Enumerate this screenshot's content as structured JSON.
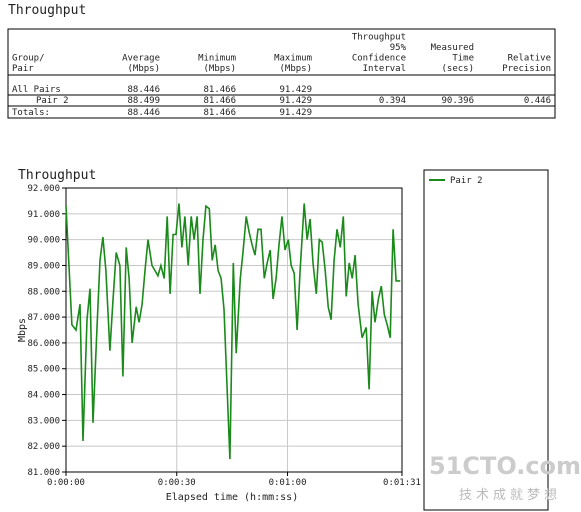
{
  "header": {
    "title": "Throughput"
  },
  "table": {
    "columns": [
      [
        "Group/",
        "Pair"
      ],
      [
        "Average",
        "(Mbps)"
      ],
      [
        "Minimum",
        "(Mbps)"
      ],
      [
        "Maximum",
        "(Mbps)"
      ],
      [
        "Throughput",
        "95%",
        "Confidence",
        "Interval"
      ],
      [
        "Measured",
        "Time",
        "(secs)"
      ],
      [
        "Relative",
        "Precision"
      ]
    ],
    "rows": [
      [
        "All Pairs",
        "88.446",
        "81.466",
        "91.429",
        null,
        null,
        null
      ],
      [
        "Pair 2",
        "88.499",
        "81.466",
        "91.429",
        "0.394",
        "90.396",
        "0.446"
      ],
      [
        "Totals:",
        "88.446",
        "81.466",
        "91.429",
        null,
        null,
        null
      ]
    ]
  },
  "chart_data": {
    "type": "line",
    "title": "Throughput",
    "x_label": "Elapsed time (h:mm:ss)",
    "y_label": "Mbps",
    "xlim": [
      0,
      91
    ],
    "xticks": [
      {
        "value": 0,
        "label": "0:00:00"
      },
      {
        "value": 30,
        "label": "0:00:30"
      },
      {
        "value": 60,
        "label": "0:01:00"
      },
      {
        "value": 91,
        "label": "0:01:31"
      }
    ],
    "ylim": [
      81,
      92
    ],
    "yticks": [
      {
        "value": 81,
        "label": "81.000"
      },
      {
        "value": 82,
        "label": "82.000"
      },
      {
        "value": 83,
        "label": "83.000"
      },
      {
        "value": 84,
        "label": "84.000"
      },
      {
        "value": 85,
        "label": "85.000"
      },
      {
        "value": 86,
        "label": "86.000"
      },
      {
        "value": 87,
        "label": "87.000"
      },
      {
        "value": 88,
        "label": "88.000"
      },
      {
        "value": 89,
        "label": "89.000"
      },
      {
        "value": 90,
        "label": "90.000"
      },
      {
        "value": 91,
        "label": "91.000"
      },
      {
        "value": 92,
        "label": "92.000"
      }
    ],
    "grid": true,
    "x": [
      0,
      1.6,
      2.7,
      3.8,
      4.6,
      5.7,
      6.5,
      7.3,
      8.4,
      9.2,
      10.0,
      10.8,
      11.9,
      12.7,
      13.6,
      14.6,
      15.4,
      16.3,
      17.1,
      17.9,
      19.0,
      19.8,
      20.6,
      21.4,
      22.2,
      23.3,
      24.1,
      24.9,
      25.7,
      26.6,
      27.4,
      28.2,
      29.0,
      29.8,
      30.6,
      31.4,
      32.2,
      33.1,
      33.9,
      34.7,
      35.5,
      36.3,
      37.1,
      37.9,
      38.8,
      39.6,
      40.4,
      41.2,
      42.0,
      42.8,
      44.4,
      45.3,
      46.1,
      47.2,
      48.0,
      48.8,
      49.6,
      50.4,
      51.2,
      52.0,
      52.8,
      53.7,
      54.5,
      55.3,
      56.1,
      56.9,
      57.7,
      58.5,
      59.3,
      60.2,
      61.0,
      61.8,
      62.6,
      63.4,
      64.5,
      65.3,
      66.1,
      66.9,
      67.8,
      68.6,
      69.4,
      70.2,
      71.0,
      71.8,
      72.6,
      73.4,
      74.3,
      75.1,
      75.9,
      76.7,
      77.5,
      78.3,
      79.1,
      80.2,
      81.3,
      82.1,
      82.9,
      83.7,
      84.6,
      85.4,
      86.2,
      87.0,
      87.8,
      88.6,
      89.4,
      90.5
    ],
    "series": [
      {
        "name": "Pair 2",
        "color": "#1a8a1a",
        "values": [
          91.3,
          86.7,
          86.5,
          87.5,
          82.2,
          86.9,
          88.1,
          82.9,
          86.6,
          89.2,
          90.1,
          88.8,
          85.7,
          87.6,
          89.5,
          89.0,
          84.7,
          89.7,
          88.5,
          86.0,
          87.4,
          86.8,
          87.5,
          88.8,
          90.0,
          89.0,
          88.8,
          88.6,
          89.0,
          88.5,
          90.9,
          87.9,
          90.2,
          90.2,
          91.4,
          89.7,
          90.9,
          89.0,
          90.9,
          90.0,
          90.9,
          87.9,
          90.0,
          91.3,
          91.2,
          89.2,
          89.8,
          88.8,
          88.5,
          87.3,
          81.5,
          89.1,
          85.6,
          88.5,
          89.6,
          90.9,
          90.3,
          89.8,
          89.4,
          90.4,
          90.4,
          88.5,
          89.1,
          89.6,
          87.7,
          88.5,
          89.8,
          90.9,
          89.6,
          90.0,
          89.0,
          88.7,
          86.5,
          88.8,
          91.4,
          90.0,
          90.8,
          89.1,
          87.9,
          90.0,
          89.9,
          88.8,
          87.4,
          86.9,
          89.2,
          90.4,
          89.7,
          90.9,
          87.8,
          89.1,
          88.5,
          89.4,
          87.5,
          86.2,
          86.6,
          84.2,
          88.0,
          86.8,
          87.7,
          88.2,
          87.1,
          86.7,
          86.2,
          90.4,
          88.4,
          88.4
        ]
      }
    ]
  },
  "watermark": {
    "site": "51CTO.com",
    "slogan": "技术成就梦想"
  }
}
